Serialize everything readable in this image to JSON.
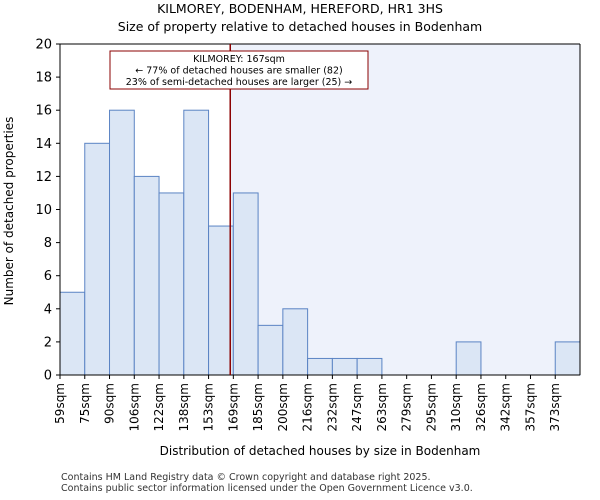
{
  "title_line1": "KILMOREY, BODENHAM, HEREFORD, HR1 3HS",
  "title_line2": "Size of property relative to detached houses in Bodenham",
  "footer_line1": "Contains HM Land Registry data © Crown copyright and database right 2025.",
  "footer_line2": "Contains public sector information licensed under the Open Government Licence v3.0.",
  "colors": {
    "bar_fill": "#dbe6f5",
    "bar_edge": "#5b84c4",
    "marker_line": "#8b0000",
    "shade": "#eef2fb"
  },
  "chart_data": {
    "type": "bar",
    "title": "Size of property relative to detached houses in Bodenham",
    "xlabel": "Distribution of detached houses by size in Bodenham",
    "ylabel": "Number of detached properties",
    "categories": [
      "59sqm",
      "75sqm",
      "90sqm",
      "106sqm",
      "122sqm",
      "138sqm",
      "153sqm",
      "169sqm",
      "185sqm",
      "200sqm",
      "216sqm",
      "232sqm",
      "247sqm",
      "263sqm",
      "279sqm",
      "295sqm",
      "310sqm",
      "326sqm",
      "342sqm",
      "357sqm",
      "373sqm"
    ],
    "values": [
      5,
      14,
      16,
      12,
      11,
      16,
      9,
      11,
      3,
      4,
      1,
      1,
      1,
      0,
      0,
      0,
      2,
      0,
      0,
      0,
      2
    ],
    "ylim": [
      0,
      20
    ],
    "yticks": [
      0,
      2,
      4,
      6,
      8,
      10,
      12,
      14,
      16,
      18,
      20
    ],
    "marker_value_sqm": 167,
    "annotation": {
      "line1": "KILMOREY: 167sqm",
      "line2": "← 77% of detached houses are smaller (82)",
      "line3": "23% of semi-detached houses are larger (25) →"
    }
  }
}
